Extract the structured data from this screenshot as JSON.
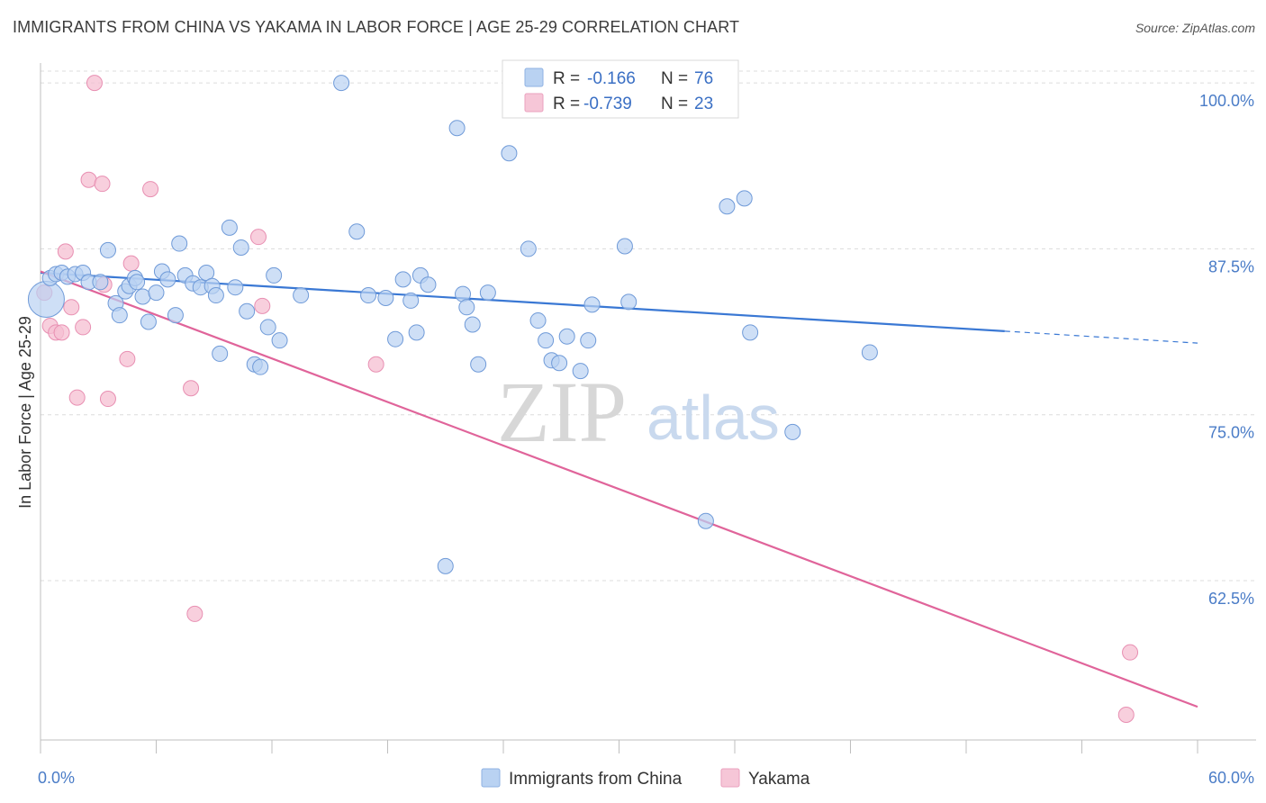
{
  "title": "IMMIGRANTS FROM CHINA VS YAKAMA IN LABOR FORCE | AGE 25-29 CORRELATION CHART",
  "source": "Source: ZipAtlas.com",
  "watermark": {
    "zip": "ZIP",
    "atlas": "atlas"
  },
  "colors": {
    "blue": "#3a78d4",
    "blue_fill": "#b9d2f2",
    "pink": "#e0649a",
    "pink_fill": "#f6bfd2",
    "grid": "#d9d9d9",
    "tick_text": "#4a7cc7"
  },
  "legend": {
    "r_label": "R =",
    "n_label": "N =",
    "rows": [
      {
        "r": "-0.166",
        "n": "76"
      },
      {
        "r": "-0.739",
        "n": "23"
      }
    ]
  },
  "chart_data": {
    "type": "scatter",
    "title": "IMMIGRANTS FROM CHINA VS YAKAMA IN LABOR FORCE | AGE 25-29 CORRELATION CHART",
    "xlabel": "",
    "ylabel": "In Labor Force | Age 25-29",
    "xlim": [
      0,
      60
    ],
    "ylim": [
      50.5,
      101.5
    ],
    "x_tick_labels": [
      "0.0%",
      "60.0%"
    ],
    "y_ticks": [
      62.5,
      75.0,
      87.5,
      100.0
    ],
    "y_tick_labels": [
      "62.5%",
      "75.0%",
      "87.5%",
      "100.0%"
    ],
    "grid": true,
    "legend_position": "top-center",
    "series": [
      {
        "name": "Immigrants from China",
        "color": "#3a78d4",
        "r": -0.166,
        "n": 76,
        "trend": {
          "x": [
            0,
            50
          ],
          "y": [
            85.7,
            81.3
          ],
          "dashed_to": [
            60,
            80.4
          ]
        },
        "points": [
          [
            0.3,
            83.7
          ],
          [
            0.5,
            85.3
          ],
          [
            0.8,
            85.6
          ],
          [
            1.1,
            85.7
          ],
          [
            1.4,
            85.4
          ],
          [
            1.8,
            85.6
          ],
          [
            2.2,
            85.7
          ],
          [
            2.5,
            85.0
          ],
          [
            3.1,
            85.0
          ],
          [
            3.5,
            87.4
          ],
          [
            3.9,
            83.4
          ],
          [
            4.1,
            82.5
          ],
          [
            4.4,
            84.3
          ],
          [
            4.6,
            84.7
          ],
          [
            4.9,
            85.3
          ],
          [
            5.3,
            83.9
          ],
          [
            5.6,
            82.0
          ],
          [
            6.0,
            84.2
          ],
          [
            6.3,
            85.8
          ],
          [
            6.6,
            85.2
          ],
          [
            7.0,
            82.5
          ],
          [
            7.2,
            87.9
          ],
          [
            7.5,
            85.5
          ],
          [
            7.9,
            84.9
          ],
          [
            8.3,
            84.6
          ],
          [
            8.6,
            85.7
          ],
          [
            8.9,
            84.7
          ],
          [
            9.1,
            84.0
          ],
          [
            9.3,
            79.6
          ],
          [
            9.8,
            89.1
          ],
          [
            10.1,
            84.6
          ],
          [
            10.4,
            87.6
          ],
          [
            10.7,
            82.8
          ],
          [
            11.1,
            78.8
          ],
          [
            11.4,
            78.6
          ],
          [
            11.8,
            81.6
          ],
          [
            12.1,
            85.5
          ],
          [
            12.4,
            80.6
          ],
          [
            15.6,
            100.0
          ],
          [
            16.4,
            88.8
          ],
          [
            17.0,
            84.0
          ],
          [
            17.9,
            83.8
          ],
          [
            18.4,
            80.7
          ],
          [
            18.8,
            85.2
          ],
          [
            19.2,
            83.6
          ],
          [
            19.5,
            81.2
          ],
          [
            19.7,
            85.5
          ],
          [
            20.1,
            84.8
          ],
          [
            21.6,
            96.6
          ],
          [
            21.9,
            84.1
          ],
          [
            22.1,
            83.1
          ],
          [
            22.4,
            81.8
          ],
          [
            22.7,
            78.8
          ],
          [
            23.2,
            84.2
          ],
          [
            24.3,
            94.7
          ],
          [
            25.3,
            87.5
          ],
          [
            25.8,
            82.1
          ],
          [
            26.2,
            80.6
          ],
          [
            26.5,
            79.1
          ],
          [
            26.9,
            78.9
          ],
          [
            27.3,
            80.9
          ],
          [
            28.0,
            78.3
          ],
          [
            28.4,
            80.6
          ],
          [
            28.6,
            83.3
          ],
          [
            30.3,
            87.7
          ],
          [
            30.5,
            83.5
          ],
          [
            32.0,
            100.0
          ],
          [
            35.6,
            90.7
          ],
          [
            36.5,
            91.3
          ],
          [
            36.8,
            81.2
          ],
          [
            39.0,
            73.7
          ],
          [
            43.0,
            79.7
          ],
          [
            34.5,
            67.0
          ],
          [
            21.0,
            63.6
          ],
          [
            5.0,
            85.0
          ],
          [
            13.5,
            84.0
          ]
        ],
        "large_point": [
          0.3,
          83.7
        ]
      },
      {
        "name": "Yakama",
        "color": "#e0649a",
        "r": -0.739,
        "n": 23,
        "trend": {
          "x": [
            0,
            60
          ],
          "y": [
            85.8,
            53.0
          ]
        },
        "points": [
          [
            0.2,
            84.2
          ],
          [
            0.5,
            81.7
          ],
          [
            0.8,
            81.2
          ],
          [
            1.1,
            81.2
          ],
          [
            1.3,
            87.3
          ],
          [
            1.6,
            83.1
          ],
          [
            1.9,
            76.3
          ],
          [
            2.2,
            81.6
          ],
          [
            2.5,
            92.7
          ],
          [
            2.8,
            100.0
          ],
          [
            3.2,
            92.4
          ],
          [
            3.5,
            76.2
          ],
          [
            3.3,
            84.8
          ],
          [
            4.5,
            79.2
          ],
          [
            4.7,
            86.4
          ],
          [
            5.7,
            92.0
          ],
          [
            7.8,
            77.0
          ],
          [
            8.0,
            60.0
          ],
          [
            11.3,
            88.4
          ],
          [
            11.5,
            83.2
          ],
          [
            17.4,
            78.8
          ],
          [
            56.5,
            57.1
          ],
          [
            56.3,
            52.4
          ]
        ]
      }
    ]
  },
  "x_axis_legend": [
    {
      "label": "Immigrants from China"
    },
    {
      "label": "Yakama"
    }
  ]
}
